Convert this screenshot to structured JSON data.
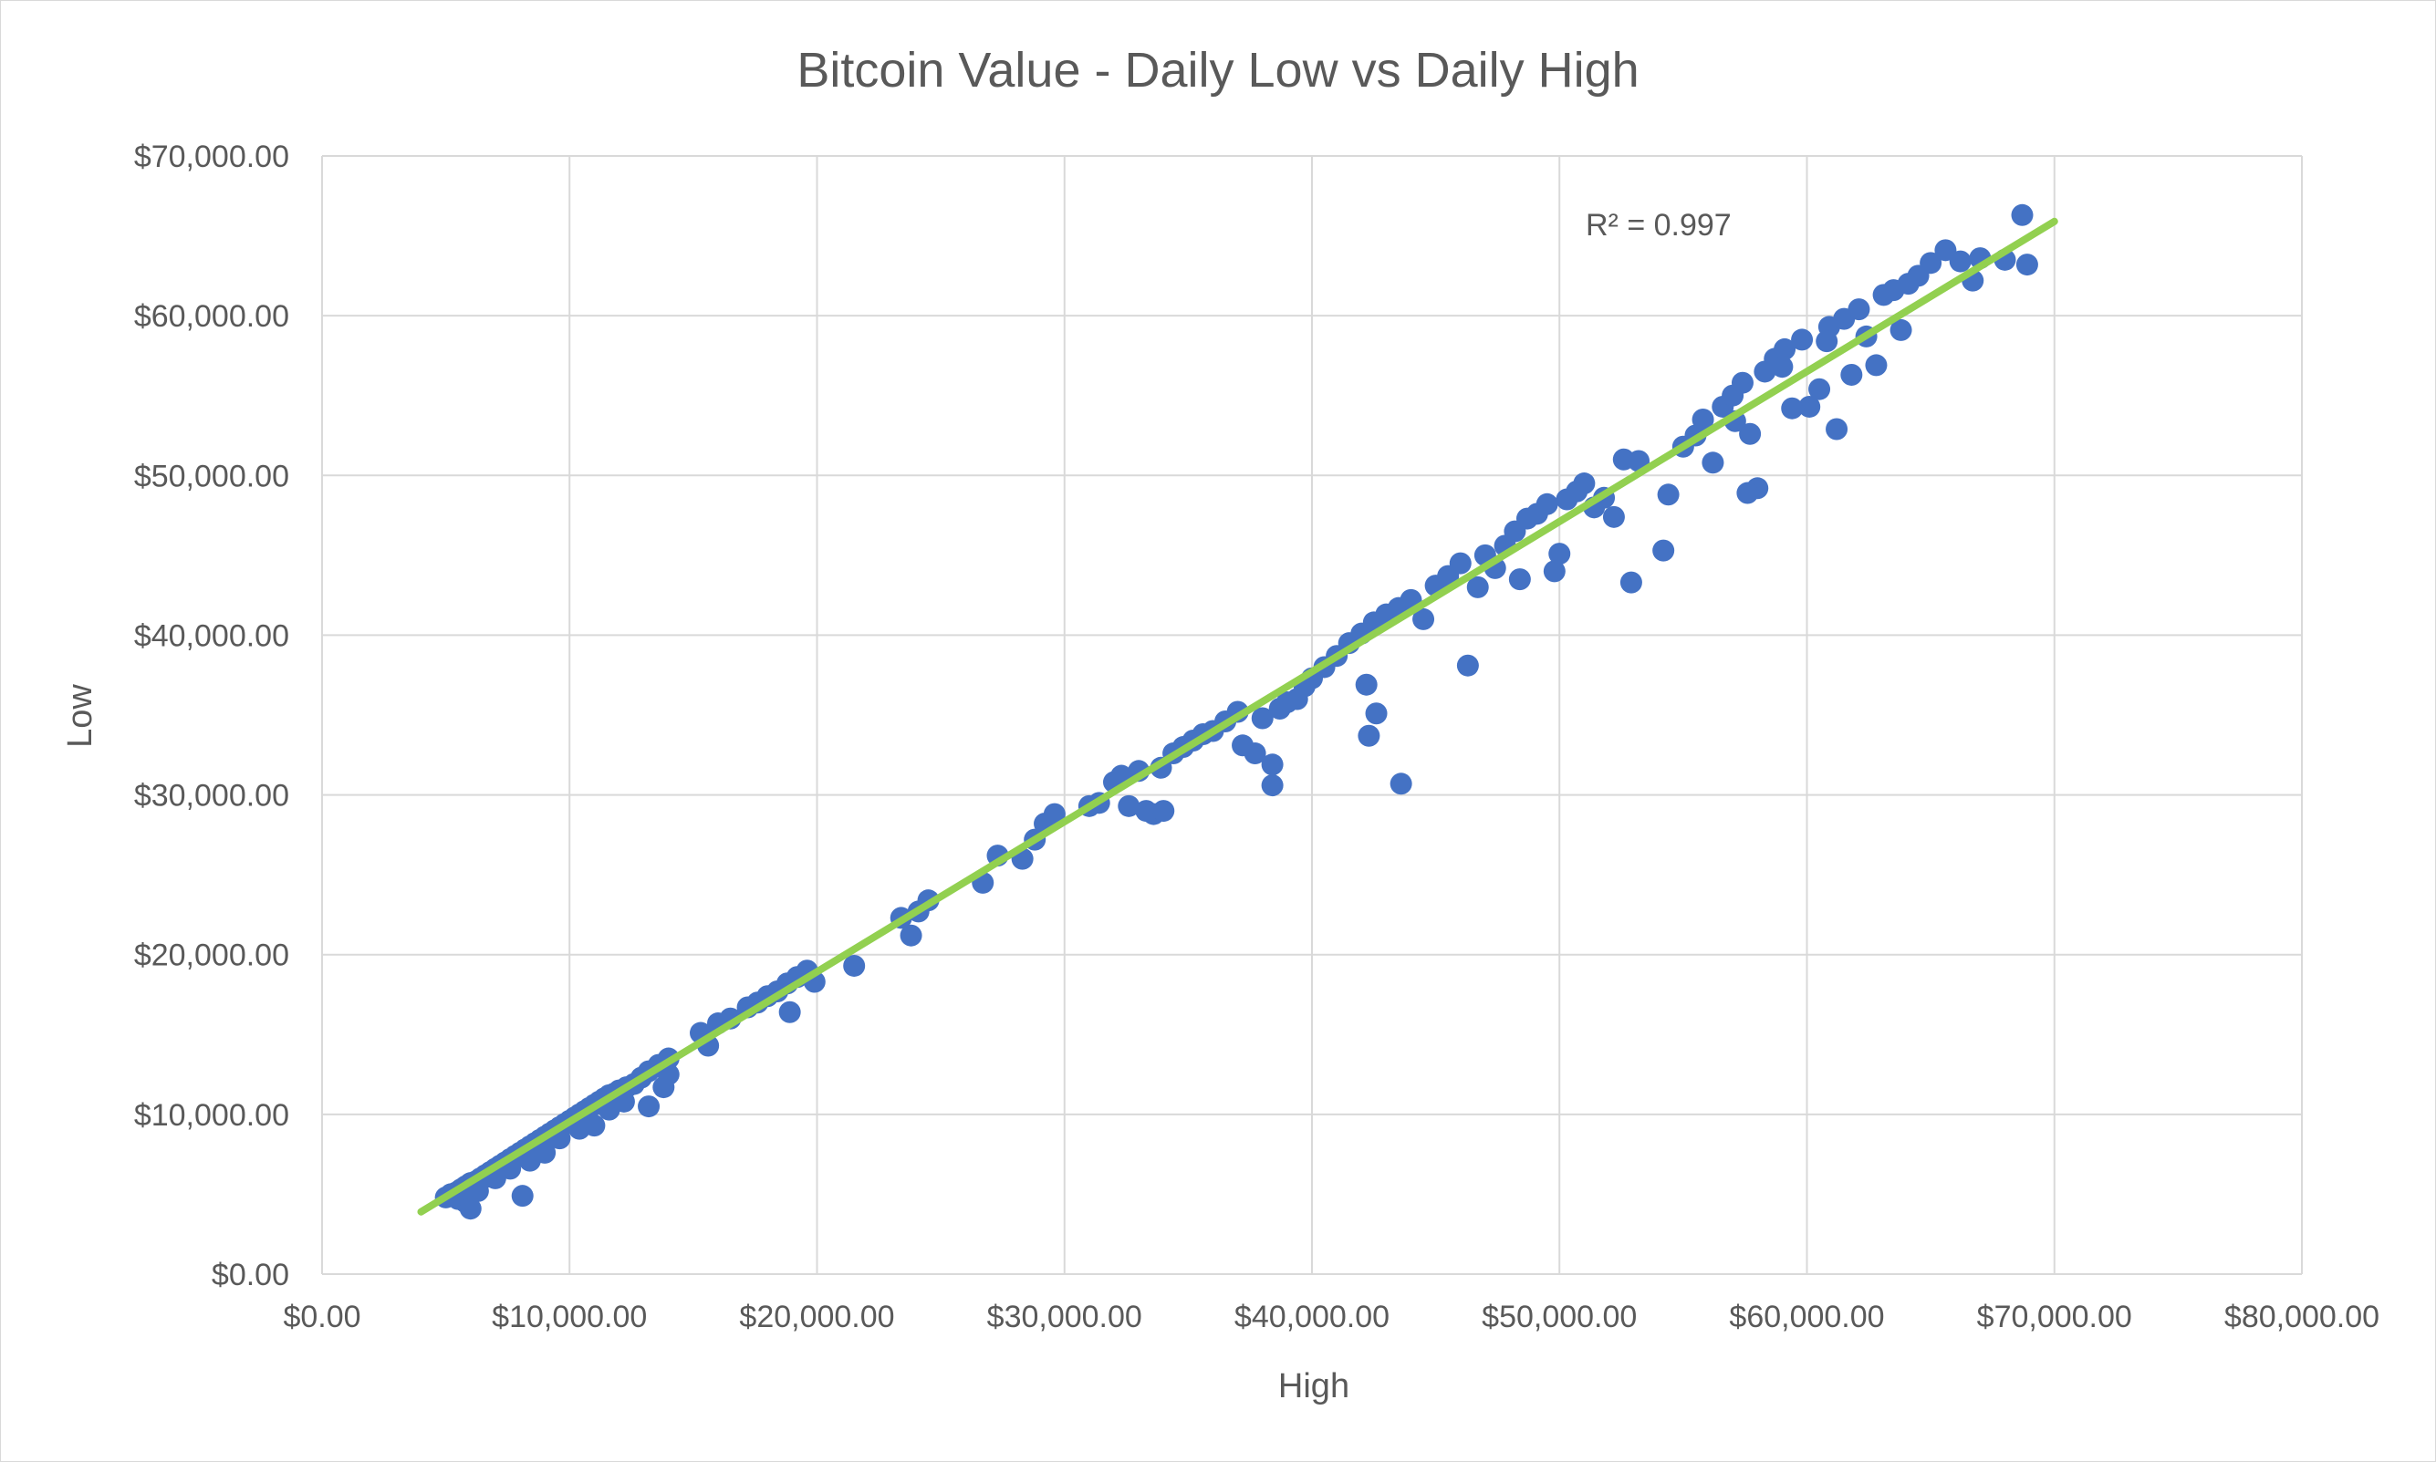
{
  "chart_data": {
    "type": "scatter",
    "title": "Bitcoin Value - Daily Low vs Daily High",
    "xlabel": "High",
    "ylabel": "Low",
    "xlim": [
      0,
      80000
    ],
    "ylim": [
      0,
      70000
    ],
    "x_ticks": [
      0,
      10000,
      20000,
      30000,
      40000,
      50000,
      60000,
      70000,
      80000
    ],
    "y_ticks": [
      0,
      10000,
      20000,
      30000,
      40000,
      50000,
      60000,
      70000
    ],
    "x_tick_labels": [
      "$0.00",
      "$10,000.00",
      "$20,000.00",
      "$30,000.00",
      "$40,000.00",
      "$50,000.00",
      "$60,000.00",
      "$70,000.00",
      "$80,000.00"
    ],
    "y_tick_labels": [
      "$0.00",
      "$10,000.00",
      "$20,000.00",
      "$30,000.00",
      "$40,000.00",
      "$50,000.00",
      "$60,000.00",
      "$70,000.00"
    ],
    "grid": true,
    "legend": "none",
    "marker_color": "#4472c4",
    "trendline_color": "#92d050",
    "trendline": {
      "x": [
        4000,
        70000
      ],
      "y": [
        3900,
        65900
      ]
    },
    "r_squared_label": "R² = 0.997",
    "series": [
      {
        "points": [
          [
            5200,
            5000
          ],
          [
            5400,
            5100
          ],
          [
            5600,
            5300
          ],
          [
            5800,
            5500
          ],
          [
            6000,
            5700
          ],
          [
            6200,
            5800
          ],
          [
            6400,
            6000
          ],
          [
            6600,
            6200
          ],
          [
            6800,
            6400
          ],
          [
            7000,
            6600
          ],
          [
            7200,
            6800
          ],
          [
            7400,
            7000
          ],
          [
            7600,
            7200
          ],
          [
            7800,
            7400
          ],
          [
            8000,
            7600
          ],
          [
            8200,
            7800
          ],
          [
            8400,
            8000
          ],
          [
            8600,
            8200
          ],
          [
            8800,
            8400
          ],
          [
            9000,
            8600
          ],
          [
            9200,
            8800
          ],
          [
            9400,
            9000
          ],
          [
            9600,
            9200
          ],
          [
            9800,
            9400
          ],
          [
            10000,
            9600
          ],
          [
            10200,
            9800
          ],
          [
            10400,
            10000
          ],
          [
            10600,
            10200
          ],
          [
            10800,
            10400
          ],
          [
            11000,
            10600
          ],
          [
            11200,
            10800
          ],
          [
            11400,
            11000
          ],
          [
            11600,
            11200
          ],
          [
            11800,
            11300
          ],
          [
            12000,
            11500
          ],
          [
            12300,
            11700
          ],
          [
            12600,
            11900
          ],
          [
            12900,
            12300
          ],
          [
            13200,
            12700
          ],
          [
            13600,
            13100
          ],
          [
            14000,
            13500
          ],
          [
            5500,
            4700
          ],
          [
            5800,
            4500
          ],
          [
            6000,
            4100
          ],
          [
            6300,
            5200
          ],
          [
            7000,
            6000
          ],
          [
            7600,
            6600
          ],
          [
            8100,
            4900
          ],
          [
            8400,
            7100
          ],
          [
            9000,
            7600
          ],
          [
            9600,
            8500
          ],
          [
            10400,
            9100
          ],
          [
            11000,
            9300
          ],
          [
            11600,
            10300
          ],
          [
            12200,
            10800
          ],
          [
            13200,
            10500
          ],
          [
            13800,
            11700
          ],
          [
            14000,
            12500
          ],
          [
            5000,
            4800
          ],
          [
            6700,
            6100
          ],
          [
            15300,
            15100
          ],
          [
            15600,
            14300
          ],
          [
            16000,
            15700
          ],
          [
            16500,
            16000
          ],
          [
            17200,
            16700
          ],
          [
            17600,
            17000
          ],
          [
            18000,
            17400
          ],
          [
            18400,
            17700
          ],
          [
            18800,
            18200
          ],
          [
            19200,
            18600
          ],
          [
            19600,
            19000
          ],
          [
            19900,
            18300
          ],
          [
            18900,
            16400
          ],
          [
            21500,
            19300
          ],
          [
            23400,
            22300
          ],
          [
            23800,
            21200
          ],
          [
            24100,
            22700
          ],
          [
            24500,
            23400
          ],
          [
            26700,
            24500
          ],
          [
            27300,
            26200
          ],
          [
            28300,
            26000
          ],
          [
            28800,
            27200
          ],
          [
            29200,
            28200
          ],
          [
            29600,
            28800
          ],
          [
            31000,
            29300
          ],
          [
            31400,
            29500
          ],
          [
            32000,
            30800
          ],
          [
            32300,
            31200
          ],
          [
            32600,
            29300
          ],
          [
            33000,
            31500
          ],
          [
            33300,
            29000
          ],
          [
            33600,
            28800
          ],
          [
            34000,
            29000
          ],
          [
            33900,
            31700
          ],
          [
            34400,
            32600
          ],
          [
            34800,
            33000
          ],
          [
            35200,
            33400
          ],
          [
            35600,
            33800
          ],
          [
            36000,
            34000
          ],
          [
            36500,
            34600
          ],
          [
            37000,
            35200
          ],
          [
            37200,
            33100
          ],
          [
            37700,
            32600
          ],
          [
            38000,
            34800
          ],
          [
            38400,
            31900
          ],
          [
            38400,
            30600
          ],
          [
            38700,
            35400
          ],
          [
            39000,
            35800
          ],
          [
            39400,
            36000
          ],
          [
            39700,
            36800
          ],
          [
            40000,
            37300
          ],
          [
            40500,
            38000
          ],
          [
            41000,
            38700
          ],
          [
            41500,
            39500
          ],
          [
            42000,
            40100
          ],
          [
            42500,
            40800
          ],
          [
            43000,
            41300
          ],
          [
            43500,
            41700
          ],
          [
            43600,
            30700
          ],
          [
            42300,
            33700
          ],
          [
            42600,
            35100
          ],
          [
            42200,
            36900
          ],
          [
            44000,
            42200
          ],
          [
            44500,
            41000
          ],
          [
            45000,
            43100
          ],
          [
            45500,
            43700
          ],
          [
            46000,
            44500
          ],
          [
            46300,
            38100
          ],
          [
            46700,
            43000
          ],
          [
            47000,
            45000
          ],
          [
            47400,
            44200
          ],
          [
            47800,
            45600
          ],
          [
            48200,
            46500
          ],
          [
            48400,
            43500
          ],
          [
            48700,
            47300
          ],
          [
            49100,
            47600
          ],
          [
            49500,
            48200
          ],
          [
            49800,
            44000
          ],
          [
            50000,
            45100
          ],
          [
            50300,
            48500
          ],
          [
            50700,
            49000
          ],
          [
            51000,
            49500
          ],
          [
            51400,
            48000
          ],
          [
            51800,
            48600
          ],
          [
            52200,
            47400
          ],
          [
            52600,
            51000
          ],
          [
            52900,
            43300
          ],
          [
            53200,
            50900
          ],
          [
            54200,
            45300
          ],
          [
            54400,
            48800
          ],
          [
            55000,
            51800
          ],
          [
            55500,
            52500
          ],
          [
            55800,
            53500
          ],
          [
            56200,
            50800
          ],
          [
            56600,
            54300
          ],
          [
            57000,
            55000
          ],
          [
            57400,
            55800
          ],
          [
            57700,
            52600
          ],
          [
            58000,
            49200
          ],
          [
            57600,
            48900
          ],
          [
            58300,
            56500
          ],
          [
            58700,
            57300
          ],
          [
            59100,
            57900
          ],
          [
            59400,
            54200
          ],
          [
            59800,
            58500
          ],
          [
            60100,
            54300
          ],
          [
            60500,
            55400
          ],
          [
            60900,
            59300
          ],
          [
            61200,
            52900
          ],
          [
            61500,
            59800
          ],
          [
            61800,
            56300
          ],
          [
            62100,
            60400
          ],
          [
            62400,
            58700
          ],
          [
            62800,
            56900
          ],
          [
            63100,
            61300
          ],
          [
            63500,
            61600
          ],
          [
            63800,
            59100
          ],
          [
            64100,
            62000
          ],
          [
            64500,
            62500
          ],
          [
            65000,
            63300
          ],
          [
            65600,
            64100
          ],
          [
            66200,
            63400
          ],
          [
            66700,
            62200
          ],
          [
            67000,
            63600
          ],
          [
            68000,
            63500
          ],
          [
            68700,
            66300
          ],
          [
            68900,
            63200
          ],
          [
            59000,
            56800
          ],
          [
            57100,
            53400
          ],
          [
            60800,
            58400
          ]
        ]
      }
    ]
  }
}
